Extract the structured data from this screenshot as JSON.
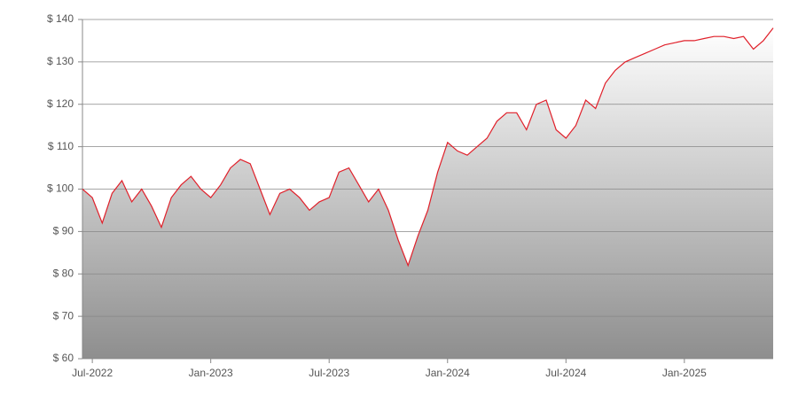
{
  "chart_data": {
    "type": "area",
    "categories": [
      null,
      "Jul-2022",
      null,
      null,
      null,
      null,
      null,
      null,
      null,
      null,
      null,
      null,
      null,
      "Jan-2023",
      null,
      null,
      null,
      null,
      null,
      null,
      null,
      null,
      null,
      null,
      null,
      "Jul-2023",
      null,
      null,
      null,
      null,
      null,
      null,
      null,
      null,
      null,
      null,
      null,
      "Jan-2024",
      null,
      null,
      null,
      null,
      null,
      null,
      null,
      null,
      null,
      null,
      null,
      "Jul-2024",
      null,
      null,
      null,
      null,
      null,
      null,
      null,
      null,
      null,
      null,
      null,
      "Jan-2025",
      null,
      null,
      null,
      null,
      null,
      null,
      null,
      null,
      null
    ],
    "values": [
      100,
      98,
      92,
      99,
      102,
      97,
      100,
      96,
      91,
      98,
      101,
      103,
      100,
      98,
      101,
      105,
      107,
      106,
      100,
      94,
      99,
      100,
      98,
      95,
      97,
      98,
      104,
      105,
      101,
      97,
      100,
      95,
      88,
      82,
      89,
      95,
      104,
      111,
      109,
      108,
      110,
      112,
      116,
      118,
      118,
      114,
      120,
      121,
      114,
      112,
      115,
      121,
      119,
      125,
      128,
      130,
      131,
      132,
      133,
      134,
      134.5,
      135,
      135,
      135.5,
      136,
      136,
      135.5,
      136,
      133,
      135,
      138
    ],
    "color": "#e0202a",
    "ylim": [
      60,
      140
    ],
    "yticks": [
      {
        "value": 60,
        "label": "$ 60"
      },
      {
        "value": 70,
        "label": "$ 70"
      },
      {
        "value": 80,
        "label": "$ 80"
      },
      {
        "value": 90,
        "label": "$ 90"
      },
      {
        "value": 100,
        "label": "$ 100"
      },
      {
        "value": 110,
        "label": "$ 110"
      },
      {
        "value": 120,
        "label": "$ 120"
      },
      {
        "value": 130,
        "label": "$ 130"
      },
      {
        "value": 140,
        "label": "$ 140"
      }
    ],
    "grid": true
  }
}
